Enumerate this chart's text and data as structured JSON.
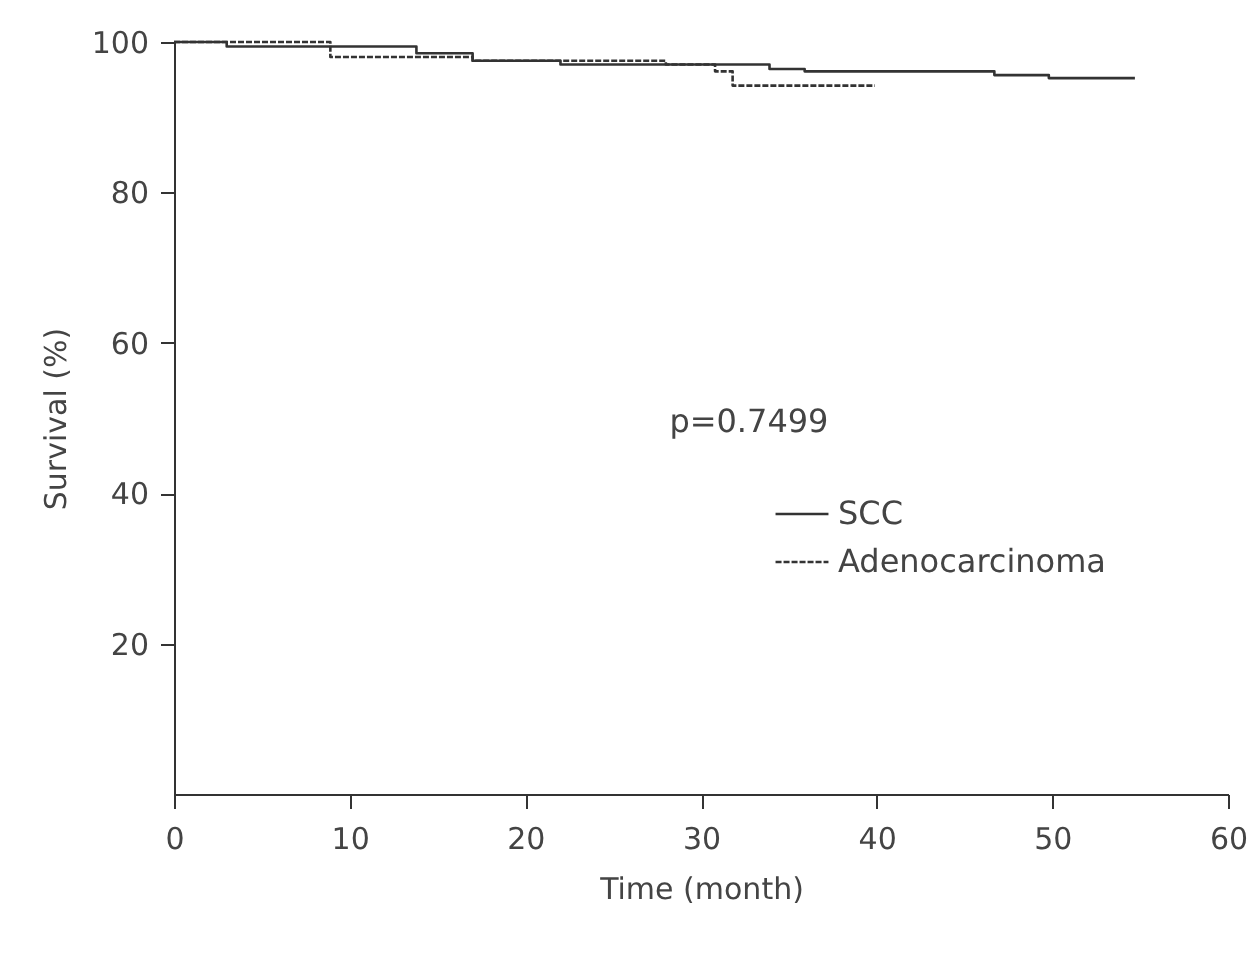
{
  "chart_data": {
    "type": "step",
    "xlabel": "Time (month)",
    "ylabel": "Survival (%)",
    "xlim": [
      0,
      60
    ],
    "xticks": [
      0,
      10,
      20,
      30,
      40,
      50,
      60
    ],
    "ylim": [
      0,
      100
    ],
    "yticks": [
      20,
      40,
      60,
      80,
      100
    ],
    "grid": false,
    "legend": "right",
    "marker": "none",
    "annotations": [
      "p=0.7499"
    ],
    "series": [
      {
        "name": "SCC",
        "color": "#333333",
        "line_style": "solid",
        "x": [
          0,
          3.0,
          13.8,
          17.0,
          22.0,
          33.9,
          35.9,
          46.7,
          49.8,
          54.7
        ],
        "values": [
          100,
          99.4,
          98.5,
          97.5,
          97.0,
          96.4,
          96.1,
          95.6,
          95.2,
          95.2
        ]
      },
      {
        "name": "Adenocarcinoma",
        "color": "#333333",
        "line_style": "dashed",
        "x": [
          0,
          8.9,
          17.0,
          28.0,
          30.8,
          31.8,
          39.9
        ],
        "values": [
          100,
          98.0,
          97.5,
          97.0,
          96.1,
          94.2,
          94.2
        ]
      }
    ]
  }
}
